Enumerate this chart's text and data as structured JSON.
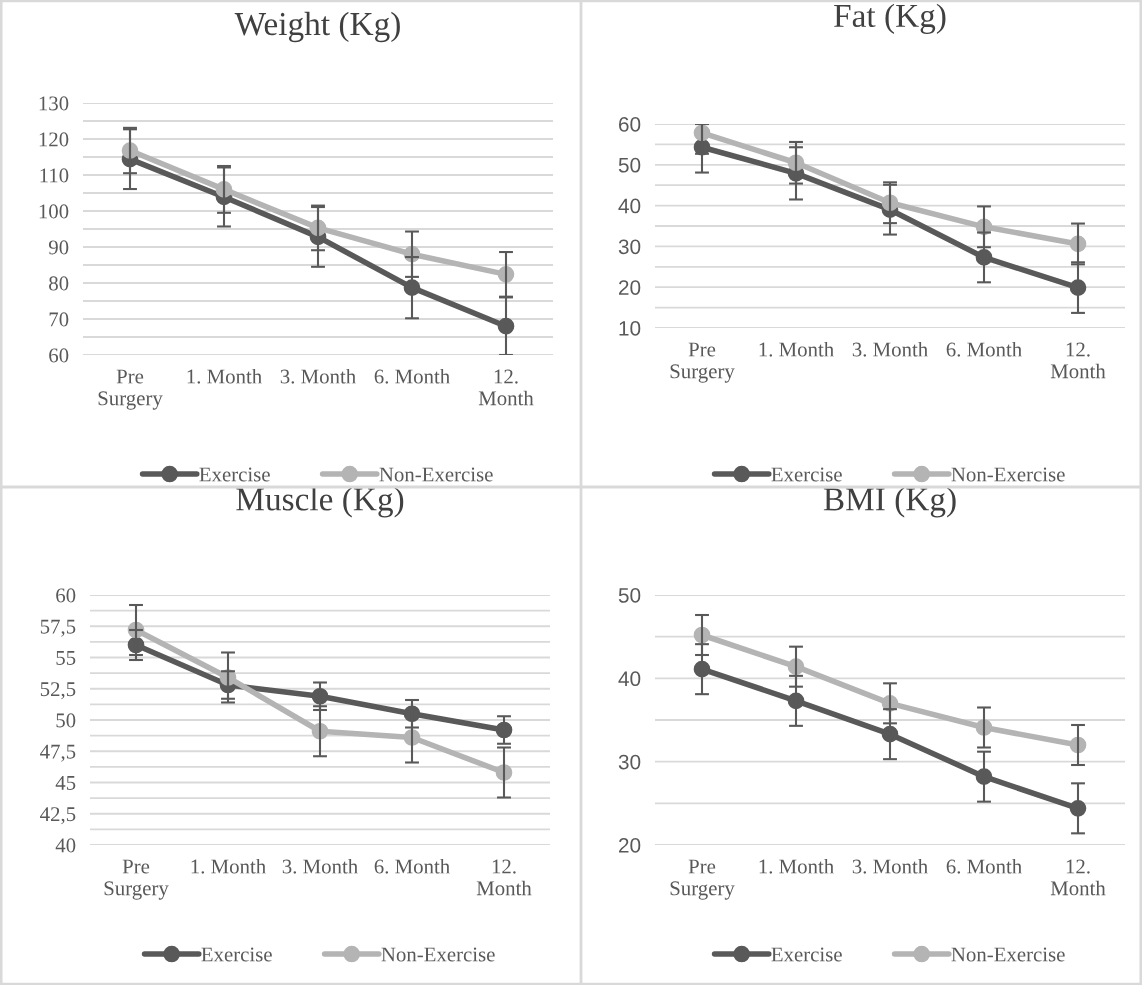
{
  "chart_data": [
    {
      "type": "line",
      "title": "Weight (Kg)",
      "categories": [
        "Pre\nSurgery",
        "1. Month",
        "3. Month",
        "6. Month",
        "12.\nMonth"
      ],
      "ylim": [
        60,
        130
      ],
      "yticks": [
        60,
        {
          "value": 65,
          "label": null
        },
        70,
        {
          "value": 75,
          "label": null
        },
        80,
        {
          "value": 85,
          "label": null
        },
        90,
        {
          "value": 95,
          "label": null
        },
        100,
        {
          "value": 105,
          "label": null
        },
        110,
        {
          "value": 115,
          "label": null
        },
        120,
        {
          "value": 125,
          "label": null
        },
        130
      ],
      "series": [
        {
          "name": "Exercise",
          "color": "#595959",
          "values": [
            114.4,
            103.9,
            92.8,
            78.7,
            68.0
          ],
          "errors": [
            8.3,
            8.2,
            8.3,
            8.5,
            8.0
          ]
        },
        {
          "name": "Non-Exercise",
          "color": "#b4b4b4",
          "values": [
            116.8,
            106.0,
            95.3,
            88.0,
            82.4
          ],
          "errors": [
            6.3,
            6.5,
            6.2,
            6.3,
            6.2
          ]
        }
      ],
      "grid": "y",
      "legend": "bottom",
      "marker": "circle",
      "line_style": "solid"
    },
    {
      "type": "line",
      "title": "Fat (Kg)",
      "categories": [
        "Pre\nSurgery",
        "1. Month",
        "3. Month",
        "6. Month",
        "12.\nMonth"
      ],
      "ylim": [
        10,
        60
      ],
      "yticks": [
        10,
        {
          "value": 15,
          "label": null
        },
        20,
        {
          "value": 25,
          "label": null
        },
        30,
        {
          "value": 35,
          "label": null
        },
        40,
        {
          "value": 45,
          "label": null
        },
        50,
        {
          "value": 55,
          "label": null
        },
        60
      ],
      "series": [
        {
          "name": "Exercise",
          "color": "#595959",
          "values": [
            54.3,
            47.9,
            39.0,
            27.3,
            19.9
          ],
          "errors": [
            [
              48.1,
              60
            ],
            6.4,
            6.1,
            6.1,
            6.2
          ]
        },
        {
          "name": "Non-Exercise",
          "color": "#b4b4b4",
          "values": [
            57.8,
            50.5,
            40.7,
            34.8,
            30.6
          ],
          "errors": [
            [
              52.7,
              60
            ],
            5.1,
            5.0,
            5.0,
            5.0
          ]
        }
      ],
      "grid": "y",
      "legend": "bottom",
      "marker": "circle",
      "line_style": "solid"
    },
    {
      "type": "line",
      "title": "Muscle (Kg)",
      "categories": [
        "Pre\nSurgery",
        "1. Month",
        "3. Month",
        "6. Month",
        "12.\nMonth"
      ],
      "ylim": [
        40,
        60
      ],
      "yticks": [
        40,
        {
          "value": 41.25,
          "label": null
        },
        {
          "value": 42.5,
          "label": "42,5"
        },
        {
          "value": 43.75,
          "label": null
        },
        45,
        {
          "value": 46.25,
          "label": null
        },
        {
          "value": 47.5,
          "label": "47,5"
        },
        {
          "value": 48.75,
          "label": null
        },
        50,
        {
          "value": 51.25,
          "label": null
        },
        {
          "value": 52.5,
          "label": "52,5"
        },
        {
          "value": 53.75,
          "label": null
        },
        55,
        {
          "value": 56.25,
          "label": null
        },
        {
          "value": 57.5,
          "label": "57,5"
        },
        {
          "value": 58.75,
          "label": null
        },
        60
      ],
      "series": [
        {
          "name": "Exercise",
          "color": "#595959",
          "values": [
            56.0,
            52.8,
            51.9,
            50.5,
            49.2
          ],
          "errors": [
            1.2,
            1.1,
            1.1,
            1.1,
            1.1
          ]
        },
        {
          "name": "Non-Exercise",
          "color": "#b4b4b4",
          "values": [
            57.2,
            53.4,
            49.1,
            48.6,
            45.8
          ],
          "errors": [
            2.0,
            2.0,
            2.0,
            2.0,
            2.0
          ]
        }
      ],
      "grid": "y",
      "legend": "bottom",
      "marker": "circle",
      "line_style": "solid"
    },
    {
      "type": "line",
      "title": "BMI (Kg)",
      "categories": [
        "Pre\nSurgery",
        "1. Month",
        "3. Month",
        "6. Month",
        "12.\nMonth"
      ],
      "ylim": [
        20,
        50
      ],
      "yticks": [
        20,
        {
          "value": 25,
          "label": null
        },
        30,
        {
          "value": 35,
          "label": null
        },
        40,
        {
          "value": 45,
          "label": null
        },
        50
      ],
      "series": [
        {
          "name": "Exercise",
          "color": "#595959",
          "values": [
            41.1,
            37.3,
            33.3,
            28.2,
            24.4
          ],
          "errors": [
            3.0,
            3.0,
            3.0,
            3.0,
            3.0
          ]
        },
        {
          "name": "Non-Exercise",
          "color": "#b4b4b4",
          "values": [
            45.2,
            41.4,
            37.0,
            34.1,
            32.0
          ],
          "errors": [
            2.4,
            2.4,
            2.4,
            2.4,
            2.4
          ]
        }
      ],
      "grid": "y",
      "legend": "bottom",
      "marker": "circle",
      "line_style": "solid"
    }
  ]
}
